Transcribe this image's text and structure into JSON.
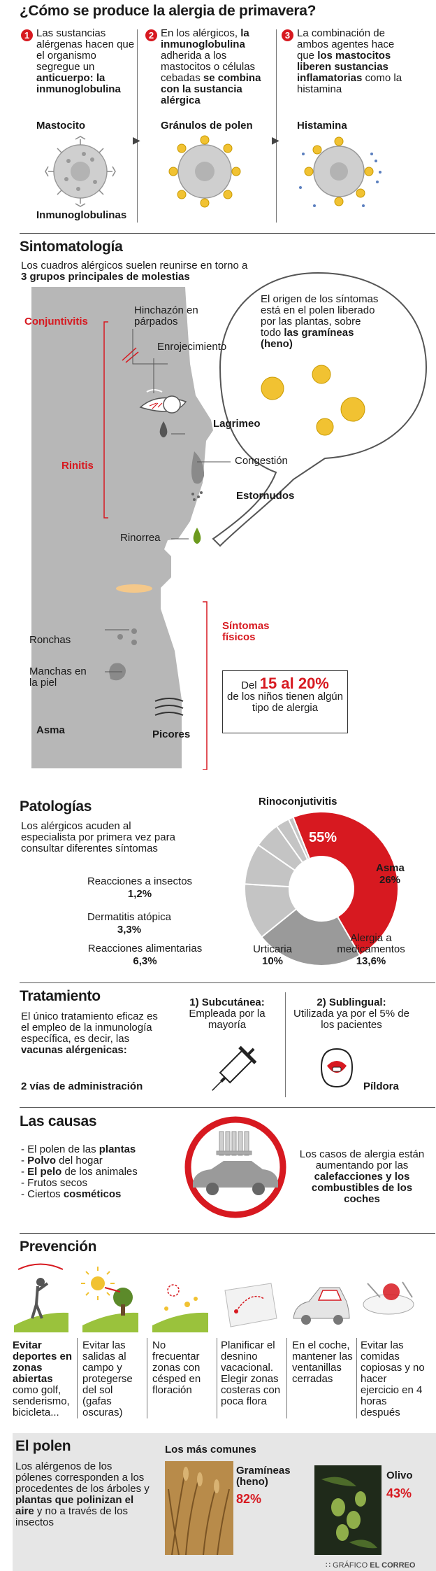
{
  "title": "¿Cómo se produce la alergia de primavera?",
  "steps": [
    {
      "num": "1",
      "t1": "Las sustancias alérgenas hacen que el organismo segregue un ",
      "b1": "anticuerpo: la inmunoglobulina",
      "t2": "",
      "label": "Mastocito",
      "label2": "Inmunoglobulinas"
    },
    {
      "num": "2",
      "t1": "En los alérgicos, ",
      "b1": "la inmunoglobulina",
      "t2": " adherida a los mastocitos o células cebadas ",
      "b2": "se combina con la sustancia alérgica",
      "label": "Gránulos de polen"
    },
    {
      "num": "3",
      "t1": "La combinación de ambos agentes hace que ",
      "b1": "los mastocitos liberen sustancias inflamatorias",
      "t2": " como la histamina",
      "label": "Histamina"
    }
  ],
  "symptoms": {
    "title": "Sintomatología",
    "intro1": "Los cuadros alérgicos suelen reunirse en torno a ",
    "intro_b": "3 grupos principales de molestias",
    "bubble_t": "El origen de los síntomas está en el polen liberado por las plantas, sobre todo ",
    "bubble_b": "las gramíneas (heno)",
    "groups": [
      "Conjuntivitis",
      "Rinitis",
      "Síntomas físicos"
    ],
    "labels": {
      "hinchazon": "Hinchazón en párpados",
      "enrojecimiento": "Enrojecimiento",
      "lagrimeo": "Lagrimeo",
      "congestion": "Congestión",
      "estornudos": "Estornudos",
      "rinorrea": "Rinorrea",
      "ronchas": "Ronchas",
      "manchas": "Manchas en la piel",
      "asma": "Asma",
      "picores": "Picores"
    },
    "stat_pre": "Del ",
    "stat_num": "15 al 20%",
    "stat_post": "de los niños tienen algún tipo de alergia"
  },
  "pathologies": {
    "title": "Patologías",
    "intro": "Los alérgicos acuden al especialista por primera vez para consultar diferentes síntomas",
    "colors": {
      "highlight": "#d71920",
      "main": "#9a9a9a",
      "light": "#c4c4c4"
    }
  },
  "chart_data": {
    "type": "pie",
    "subtype": "donut",
    "title": "",
    "categories": [
      "Rinoconjutivitis",
      "Asma",
      "Alergia a medicamentos",
      "Urticaria",
      "Reacciones alimentarias",
      "Dermatitis atópica",
      "Reacciones a insectos"
    ],
    "values": [
      55,
      26,
      13.6,
      10,
      6.3,
      3.3,
      1.2
    ],
    "value_labels": [
      "55%",
      "26%",
      "13,6%",
      "10%",
      "6,3%",
      "3,3%",
      "1,2%"
    ],
    "highlight": "Rinoconjutivitis"
  },
  "treatment": {
    "title": "Tratamiento",
    "intro": "El único tratamiento eficaz es el empleo de la inmunología específica, es decir, las ",
    "intro_b": "vacunas alérgenicas:",
    "vias": "2 vías de administración",
    "opt1_b": "1) Subcutánea:",
    "opt1_t": "Empleada por la mayoría",
    "opt2_b": "2) Sublingual:",
    "opt2_t": "Utilizada ya por el 5% de los pacientes",
    "pildora": "Píldora"
  },
  "causes": {
    "title": "Las causas",
    "items": [
      {
        "pre": "- El polen de las ",
        "b": "plantas",
        "post": ""
      },
      {
        "pre": "- ",
        "b": "Polvo",
        "post": " del hogar"
      },
      {
        "pre": "- ",
        "b": "El pelo",
        "post": " de los animales"
      },
      {
        "pre": "- Frutos secos",
        "b": "",
        "post": ""
      },
      {
        "pre": "- Ciertos ",
        "b": "cosméticos",
        "post": ""
      }
    ],
    "note_t": "Los casos de alergia están aumentando por las ",
    "note_b": "calefacciones y los combustibles de los coches"
  },
  "prevention": {
    "title": "Prevención",
    "items": [
      {
        "b": "Evitar deportes en zonas abiertas",
        "t": " como golf, senderismo, bicicleta..."
      },
      {
        "b": "",
        "t": "Evitar las salidas al campo y protegerse del sol (gafas oscuras)"
      },
      {
        "b": "",
        "t": "No frecuentar zonas con césped en floración"
      },
      {
        "b": "",
        "t": "Planificar el desnino vacacional. Elegir zonas costeras con poca flora"
      },
      {
        "b": "",
        "t": "En el coche, mantener las ventanillas cerradas"
      },
      {
        "b": "",
        "t": "Evitar las comidas copiosas y no hacer ejercicio en 4 horas después"
      }
    ]
  },
  "pollen": {
    "title": "El polen",
    "intro1": "Los alérgenos de los pólenes corresponden a los procedentes de los árboles y ",
    "intro_b": "plantas que polinizan el aire",
    "intro2": " y no a través de los insectos",
    "common": "Los más comunes",
    "g_name": "Gramíneas (heno)",
    "g_pct": "82%",
    "o_name": "Olivo",
    "o_pct": "43%"
  },
  "credit_pre": "GRÁFICO ",
  "credit_b": "EL CORREO"
}
